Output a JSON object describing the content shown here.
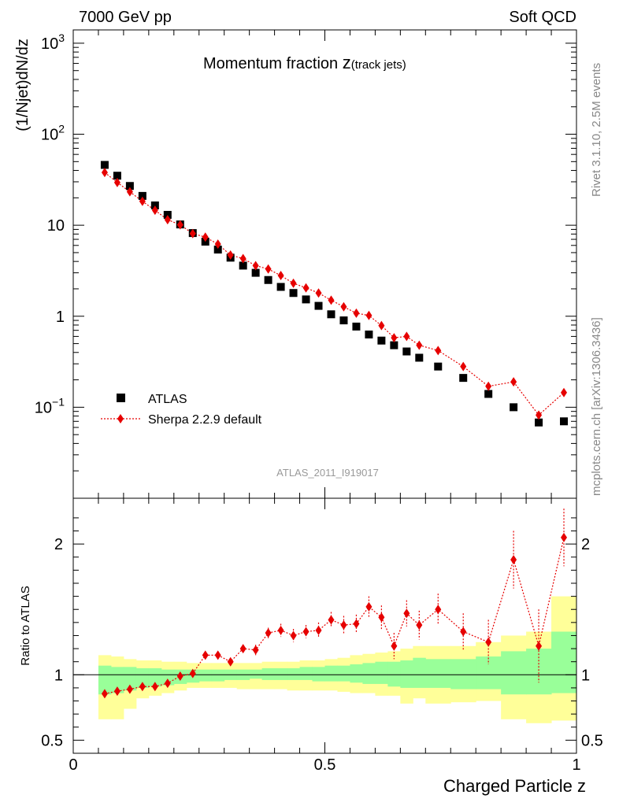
{
  "header": {
    "left": "7000 GeV pp",
    "right": "Soft QCD"
  },
  "side_labels": {
    "rivet": "Rivet 3.1.10,  2.5M events",
    "source": "mcplots.cern.ch [arXiv:1306.3436]"
  },
  "plot_title": {
    "main": "Momentum fraction ",
    "z": "z",
    "sub": "(track jets)"
  },
  "analysis_id": "ATLAS_2011_I919017",
  "colors": {
    "data": "#000000",
    "mc": "#e60000",
    "band_inner": "#99ff99",
    "band_outer": "#ffff99"
  },
  "chart_data": [
    {
      "type": "scatter",
      "panel": "main",
      "ylabel": "(1/Njet)dN/dz",
      "yscale": "log",
      "ylim": [
        0.01,
        1400
      ],
      "xlim": [
        0,
        1
      ],
      "y_tick_labels": [
        "10⁻¹",
        "1",
        "10",
        "10²",
        "10³"
      ],
      "legend_position": "lower-left",
      "series": [
        {
          "name": "ATLAS",
          "style": "square-marker",
          "x": [
            0.0625,
            0.0875,
            0.1125,
            0.1375,
            0.1625,
            0.1875,
            0.2125,
            0.2375,
            0.2625,
            0.2875,
            0.3125,
            0.3375,
            0.3625,
            0.3875,
            0.4125,
            0.4375,
            0.4625,
            0.4875,
            0.5125,
            0.5375,
            0.5625,
            0.5875,
            0.6125,
            0.6375,
            0.6625,
            0.6875,
            0.725,
            0.775,
            0.825,
            0.875,
            0.925,
            0.975
          ],
          "y": [
            46,
            35,
            27,
            21,
            16.5,
            13,
            10.2,
            8.2,
            6.6,
            5.4,
            4.4,
            3.6,
            3.0,
            2.5,
            2.1,
            1.8,
            1.53,
            1.3,
            1.05,
            0.9,
            0.77,
            0.63,
            0.54,
            0.48,
            0.41,
            0.35,
            0.28,
            0.21,
            0.14,
            0.1,
            0.068,
            0.07
          ]
        },
        {
          "name": "Sherpa 2.2.9 default",
          "style": "diamond-dotted",
          "x": [
            0.0625,
            0.0875,
            0.1125,
            0.1375,
            0.1625,
            0.1875,
            0.2125,
            0.2375,
            0.2625,
            0.2875,
            0.3125,
            0.3375,
            0.3625,
            0.3875,
            0.4125,
            0.4375,
            0.4625,
            0.4875,
            0.5125,
            0.5375,
            0.5625,
            0.5875,
            0.6125,
            0.6375,
            0.6625,
            0.6875,
            0.725,
            0.775,
            0.825,
            0.875,
            0.925,
            0.975
          ],
          "y": [
            38,
            29.5,
            23.3,
            18.3,
            14.6,
            11.5,
            10.1,
            8.1,
            7.4,
            6.2,
            4.7,
            4.3,
            3.6,
            3.3,
            2.8,
            2.3,
            2.05,
            1.8,
            1.5,
            1.27,
            1.08,
            1.02,
            0.79,
            0.58,
            0.6,
            0.48,
            0.42,
            0.28,
            0.17,
            0.19,
            0.082,
            0.145
          ]
        }
      ]
    },
    {
      "type": "scatter",
      "panel": "ratio",
      "xlabel": "Charged Particle z",
      "ylabel": "Ratio to ATLAS",
      "ylim": [
        0.4,
        2.35
      ],
      "xlim": [
        0,
        1
      ],
      "x_tick_labels": [
        "0",
        "0.5",
        "1"
      ],
      "y_tick_labels": [
        "0.5",
        "1",
        "2"
      ],
      "bin_edges": [
        0.05,
        0.075,
        0.1,
        0.125,
        0.15,
        0.175,
        0.2,
        0.225,
        0.25,
        0.275,
        0.3,
        0.325,
        0.35,
        0.375,
        0.4,
        0.425,
        0.45,
        0.475,
        0.5,
        0.525,
        0.55,
        0.575,
        0.6,
        0.625,
        0.65,
        0.675,
        0.7,
        0.75,
        0.8,
        0.85,
        0.9,
        0.95,
        1.0
      ],
      "band_outer": {
        "low": [
          0.66,
          0.66,
          0.74,
          0.82,
          0.84,
          0.86,
          0.88,
          0.9,
          0.9,
          0.9,
          0.9,
          0.89,
          0.89,
          0.89,
          0.89,
          0.88,
          0.88,
          0.88,
          0.88,
          0.87,
          0.86,
          0.86,
          0.84,
          0.84,
          0.78,
          0.82,
          0.78,
          0.79,
          0.8,
          0.66,
          0.63,
          0.65
        ],
        "high": [
          1.15,
          1.14,
          1.12,
          1.11,
          1.11,
          1.1,
          1.1,
          1.09,
          1.09,
          1.09,
          1.09,
          1.09,
          1.09,
          1.1,
          1.1,
          1.1,
          1.11,
          1.11,
          1.12,
          1.13,
          1.15,
          1.16,
          1.17,
          1.18,
          1.2,
          1.22,
          1.22,
          1.22,
          1.25,
          1.3,
          1.33,
          1.6
        ]
      },
      "band_inner": {
        "low": [
          0.85,
          0.86,
          0.88,
          0.9,
          0.91,
          0.92,
          0.93,
          0.94,
          0.95,
          0.95,
          0.96,
          0.96,
          0.97,
          0.96,
          0.96,
          0.96,
          0.96,
          0.95,
          0.95,
          0.95,
          0.94,
          0.93,
          0.93,
          0.91,
          0.9,
          0.9,
          0.9,
          0.89,
          0.89,
          0.85,
          0.85,
          0.86
        ],
        "high": [
          1.07,
          1.06,
          1.06,
          1.05,
          1.05,
          1.04,
          1.04,
          1.04,
          1.04,
          1.04,
          1.04,
          1.04,
          1.04,
          1.05,
          1.05,
          1.05,
          1.06,
          1.06,
          1.07,
          1.07,
          1.08,
          1.09,
          1.1,
          1.1,
          1.11,
          1.13,
          1.12,
          1.12,
          1.14,
          1.18,
          1.2,
          1.33
        ]
      },
      "series": [
        {
          "name": "Sherpa 2.2.9 default",
          "x": [
            0.0625,
            0.0875,
            0.1125,
            0.1375,
            0.1625,
            0.1875,
            0.2125,
            0.2375,
            0.2625,
            0.2875,
            0.3125,
            0.3375,
            0.3625,
            0.3875,
            0.4125,
            0.4375,
            0.4625,
            0.4875,
            0.5125,
            0.5375,
            0.5625,
            0.5875,
            0.6125,
            0.6375,
            0.6625,
            0.6875,
            0.725,
            0.775,
            0.825,
            0.875,
            0.925,
            0.975
          ],
          "y": [
            0.855,
            0.875,
            0.89,
            0.91,
            0.91,
            0.935,
            0.99,
            1.01,
            1.15,
            1.15,
            1.1,
            1.2,
            1.19,
            1.32,
            1.34,
            1.3,
            1.33,
            1.34,
            1.42,
            1.38,
            1.39,
            1.52,
            1.44,
            1.22,
            1.47,
            1.38,
            1.5,
            1.33,
            1.25,
            1.88,
            1.22,
            2.05
          ],
          "err": [
            0.01,
            0.01,
            0.01,
            0.01,
            0.01,
            0.01,
            0.02,
            0.02,
            0.02,
            0.03,
            0.03,
            0.03,
            0.04,
            0.04,
            0.05,
            0.05,
            0.05,
            0.06,
            0.06,
            0.07,
            0.07,
            0.08,
            0.09,
            0.1,
            0.1,
            0.11,
            0.12,
            0.14,
            0.17,
            0.22,
            0.28,
            0.22
          ]
        }
      ]
    }
  ]
}
